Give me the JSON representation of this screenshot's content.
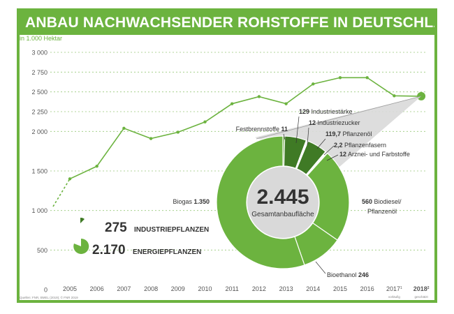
{
  "title": "ANBAU NACHWACHSENDER ROHSTOFFE IN DEUTSCHLAND",
  "unit_label": "in 1.000 Hektar",
  "source": "Quellen: FNR, BMEL (2019); © FNR 2019",
  "colors": {
    "brand": "#6cb33f",
    "dark": "#3f7a25",
    "light_grey": "#d9d9d9",
    "mid_grey": "#bfbfbf",
    "text_dark": "#333333"
  },
  "chart_data": [
    {
      "type": "line",
      "title": "ANBAU NACHWACHSENDER ROHSTOFFE IN DEUTSCHLAND",
      "ylabel": "in 1.000 Hektar",
      "categories": [
        "2005",
        "2006",
        "2007",
        "2008",
        "2009",
        "2010",
        "2011",
        "2012",
        "2013",
        "2014",
        "2015",
        "2016",
        "2017",
        "2018"
      ],
      "category_marks": [
        "",
        "",
        "",
        "",
        "",
        "",
        "",
        "",
        "",
        "",
        "",
        "",
        "1",
        "2"
      ],
      "category_notes": [
        "",
        "",
        "",
        "",
        "",
        "",
        "",
        "",
        "",
        "",
        "",
        "",
        "vorläufig",
        "geschätzt"
      ],
      "values": [
        1400,
        1560,
        2040,
        1910,
        1990,
        2120,
        2350,
        2440,
        2350,
        2600,
        2680,
        2680,
        2450,
        2445
      ],
      "start_value": 1050,
      "yticks": [
        "0",
        "500",
        "1 000",
        "1 500",
        "2 000",
        "2 250",
        "2 500",
        "2 750",
        "3 000"
      ],
      "ytick_values": [
        0,
        500,
        1000,
        1500,
        2000,
        2250,
        2500,
        2750,
        3000
      ],
      "ylim": [
        0,
        3000
      ],
      "grid": true
    },
    {
      "type": "pie",
      "title": "Gesamtanbaufläche",
      "total": "2.445",
      "total_label": "Gesamtanbaufläche",
      "slices": [
        {
          "label": "Festbrennstoffe",
          "value": 11,
          "value_text": "11"
        },
        {
          "label": "Industriestärke",
          "value": 129,
          "value_text": "129"
        },
        {
          "label": "Industriezucker",
          "value": 12,
          "value_text": "12"
        },
        {
          "label": "Pflanzenöl",
          "value": 119.7,
          "value_text": "119,7"
        },
        {
          "label": "Pflanzenfasern",
          "value": 2.2,
          "value_text": "2,2"
        },
        {
          "label": "Arznei- und Farbstoffe",
          "value": 12,
          "value_text": "12"
        },
        {
          "label": "Biodiesel/ Pflanzenöl",
          "value": 560,
          "value_text": "560"
        },
        {
          "label": "Bioethanol",
          "value": 246,
          "value_text": "246"
        },
        {
          "label": "Biogas",
          "value": 1350,
          "value_text": "1.350"
        }
      ]
    }
  ],
  "legend": {
    "industry_value": "275",
    "industry_label": "INDUSTRIEPFLANZEN",
    "energy_value": "2.170",
    "energy_label": "ENERGIEPFLANZEN"
  }
}
